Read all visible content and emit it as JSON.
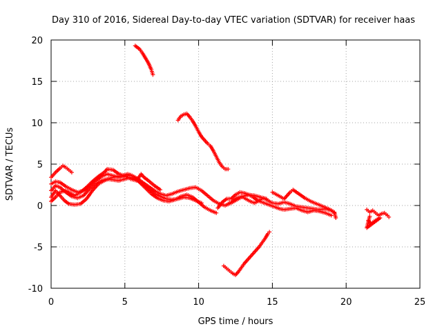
{
  "chart_data": {
    "type": "scatter",
    "title": "Day 310 of 2016, Sidereal Day-to-day VTEC variation (SDTVAR) for receiver haas",
    "xlabel": "GPS time / hours",
    "ylabel": "SDTVAR / TECUs",
    "xlim": [
      0,
      25
    ],
    "ylim": [
      -10,
      20
    ],
    "x_ticks": [
      0,
      5,
      10,
      15,
      20,
      25
    ],
    "y_ticks": [
      -10,
      -5,
      0,
      5,
      10,
      15,
      20
    ],
    "x_tick_labels": [
      "0",
      "5",
      "10",
      "15",
      "20",
      "25"
    ],
    "y_tick_labels": [
      "-10",
      "-5",
      "0",
      "5",
      "10",
      "15",
      "20"
    ],
    "grid": true,
    "marker": "+",
    "color": "#ff0000",
    "series": [
      {
        "name": "track-1",
        "points": [
          [
            0.0,
            3.4
          ],
          [
            0.3,
            4.0
          ],
          [
            0.6,
            4.5
          ],
          [
            0.8,
            4.8
          ],
          [
            1.0,
            4.6
          ],
          [
            1.2,
            4.3
          ],
          [
            1.4,
            4.0
          ]
        ]
      },
      {
        "name": "track-2",
        "points": [
          [
            0.0,
            2.6
          ],
          [
            0.3,
            2.9
          ],
          [
            0.6,
            2.8
          ],
          [
            1.0,
            2.3
          ],
          [
            1.4,
            1.9
          ],
          [
            1.8,
            1.6
          ],
          [
            2.2,
            1.8
          ],
          [
            2.6,
            2.4
          ],
          [
            3.0,
            3.0
          ],
          [
            3.4,
            3.5
          ],
          [
            3.8,
            3.8
          ],
          [
            4.2,
            3.6
          ],
          [
            4.6,
            3.4
          ],
          [
            5.0,
            3.5
          ],
          [
            5.4,
            3.7
          ],
          [
            5.8,
            3.3
          ],
          [
            6.2,
            2.8
          ],
          [
            6.6,
            2.3
          ],
          [
            7.0,
            1.8
          ],
          [
            7.4,
            1.4
          ],
          [
            7.8,
            1.2
          ],
          [
            8.2,
            1.4
          ],
          [
            8.6,
            1.7
          ],
          [
            9.0,
            1.9
          ],
          [
            9.4,
            2.1
          ],
          [
            9.8,
            2.2
          ],
          [
            10.2,
            1.8
          ],
          [
            10.6,
            1.2
          ],
          [
            11.0,
            0.6
          ],
          [
            11.4,
            0.2
          ],
          [
            11.8,
            0.0
          ],
          [
            12.2,
            0.3
          ],
          [
            12.6,
            0.7
          ],
          [
            13.0,
            1.1
          ],
          [
            13.4,
            1.3
          ],
          [
            13.8,
            1.2
          ],
          [
            14.2,
            1.0
          ],
          [
            14.6,
            0.8
          ]
        ]
      },
      {
        "name": "track-3",
        "points": [
          [
            0.0,
            1.8
          ],
          [
            0.3,
            2.4
          ],
          [
            0.6,
            2.2
          ],
          [
            1.0,
            1.6
          ],
          [
            1.4,
            1.1
          ],
          [
            1.8,
            0.9
          ],
          [
            2.2,
            1.2
          ],
          [
            2.6,
            2.0
          ],
          [
            3.0,
            2.6
          ],
          [
            3.4,
            3.0
          ],
          [
            3.8,
            3.2
          ],
          [
            4.2,
            3.1
          ],
          [
            4.6,
            3.0
          ],
          [
            5.0,
            3.2
          ],
          [
            5.4,
            3.4
          ],
          [
            5.8,
            3.1
          ],
          [
            6.2,
            2.6
          ],
          [
            6.6,
            2.0
          ],
          [
            7.0,
            1.5
          ],
          [
            7.4,
            1.1
          ],
          [
            7.8,
            0.8
          ],
          [
            8.2,
            0.7
          ],
          [
            8.6,
            0.8
          ],
          [
            9.0,
            1.0
          ],
          [
            9.4,
            0.9
          ],
          [
            9.8,
            0.6
          ],
          [
            10.2,
            0.3
          ]
        ]
      },
      {
        "name": "track-4",
        "points": [
          [
            0.0,
            1.0
          ],
          [
            0.3,
            1.8
          ],
          [
            0.6,
            1.2
          ],
          [
            0.9,
            0.6
          ],
          [
            1.2,
            0.2
          ],
          [
            1.6,
            0.1
          ],
          [
            2.0,
            0.2
          ],
          [
            2.4,
            0.8
          ],
          [
            2.8,
            1.8
          ],
          [
            3.2,
            2.6
          ],
          [
            3.6,
            3.0
          ],
          [
            4.0,
            3.3
          ],
          [
            4.4,
            3.5
          ],
          [
            4.8,
            3.6
          ],
          [
            5.2,
            3.8
          ],
          [
            5.6,
            3.5
          ],
          [
            6.0,
            2.8
          ],
          [
            6.4,
            2.1
          ],
          [
            6.8,
            1.4
          ],
          [
            7.2,
            0.9
          ],
          [
            7.6,
            0.6
          ],
          [
            8.0,
            0.5
          ],
          [
            8.4,
            0.7
          ],
          [
            8.8,
            1.1
          ],
          [
            9.2,
            1.3
          ],
          [
            9.6,
            1.0
          ],
          [
            10.0,
            0.4
          ],
          [
            10.4,
            -0.2
          ],
          [
            10.8,
            -0.6
          ],
          [
            11.2,
            -0.9
          ]
        ]
      },
      {
        "name": "track-5",
        "points": [
          [
            0.0,
            0.5
          ],
          [
            0.3,
            1.0
          ],
          [
            0.6,
            1.6
          ],
          [
            1.0,
            1.8
          ],
          [
            1.3,
            1.5
          ],
          [
            1.6,
            1.2
          ],
          [
            2.0,
            1.6
          ],
          [
            2.4,
            2.2
          ],
          [
            2.8,
            2.9
          ],
          [
            3.2,
            3.5
          ],
          [
            3.6,
            4.0
          ],
          [
            3.8,
            4.4
          ],
          [
            4.2,
            4.3
          ],
          [
            4.6,
            3.8
          ],
          [
            5.0,
            3.6
          ],
          [
            5.4,
            3.2
          ],
          [
            5.8,
            3.0
          ],
          [
            6.1,
            3.8
          ],
          [
            6.3,
            3.4
          ],
          [
            6.6,
            3.0
          ],
          [
            7.0,
            2.4
          ],
          [
            7.4,
            1.9
          ]
        ]
      },
      {
        "name": "track-6",
        "points": [
          [
            5.7,
            19.3
          ],
          [
            6.0,
            18.9
          ],
          [
            6.2,
            18.4
          ],
          [
            6.4,
            17.8
          ],
          [
            6.6,
            17.2
          ],
          [
            6.8,
            16.4
          ],
          [
            6.9,
            15.8
          ]
        ]
      },
      {
        "name": "track-7",
        "points": [
          [
            8.6,
            10.3
          ],
          [
            8.8,
            10.8
          ],
          [
            9.0,
            11.0
          ],
          [
            9.2,
            11.1
          ],
          [
            9.4,
            10.7
          ],
          [
            9.6,
            10.2
          ],
          [
            9.8,
            9.6
          ],
          [
            10.0,
            8.9
          ],
          [
            10.2,
            8.3
          ],
          [
            10.4,
            7.9
          ],
          [
            10.6,
            7.5
          ],
          [
            10.8,
            7.2
          ],
          [
            11.0,
            6.6
          ],
          [
            11.2,
            5.9
          ],
          [
            11.4,
            5.2
          ],
          [
            11.6,
            4.7
          ],
          [
            11.8,
            4.4
          ],
          [
            12.0,
            4.4
          ]
        ]
      },
      {
        "name": "track-8",
        "points": [
          [
            11.7,
            -7.3
          ],
          [
            11.9,
            -7.6
          ],
          [
            12.1,
            -7.9
          ],
          [
            12.3,
            -8.2
          ],
          [
            12.5,
            -8.4
          ],
          [
            12.7,
            -8.0
          ],
          [
            12.9,
            -7.5
          ],
          [
            13.1,
            -7.0
          ],
          [
            13.3,
            -6.6
          ],
          [
            13.5,
            -6.2
          ],
          [
            13.7,
            -5.8
          ],
          [
            13.9,
            -5.4
          ],
          [
            14.1,
            -5.0
          ],
          [
            14.3,
            -4.5
          ],
          [
            14.5,
            -4.0
          ],
          [
            14.7,
            -3.4
          ],
          [
            14.8,
            -3.2
          ]
        ]
      },
      {
        "name": "track-9",
        "points": [
          [
            11.3,
            -0.3
          ],
          [
            11.6,
            0.4
          ],
          [
            11.9,
            0.8
          ],
          [
            12.2,
            0.8
          ],
          [
            12.5,
            1.3
          ],
          [
            12.8,
            1.6
          ],
          [
            13.1,
            1.5
          ],
          [
            13.4,
            1.3
          ],
          [
            13.7,
            1.0
          ],
          [
            14.0,
            0.6
          ],
          [
            14.3,
            0.4
          ],
          [
            14.6,
            0.2
          ],
          [
            14.9,
            0.0
          ],
          [
            15.2,
            -0.2
          ],
          [
            15.5,
            -0.4
          ],
          [
            15.8,
            -0.5
          ],
          [
            16.2,
            -0.4
          ],
          [
            16.6,
            -0.3
          ],
          [
            17.0,
            -0.6
          ],
          [
            17.4,
            -0.8
          ],
          [
            17.8,
            -0.6
          ],
          [
            18.2,
            -0.7
          ],
          [
            18.6,
            -0.9
          ],
          [
            19.0,
            -1.2
          ]
        ]
      },
      {
        "name": "track-10",
        "points": [
          [
            12.0,
            0.2
          ],
          [
            12.3,
            0.5
          ],
          [
            12.6,
            0.9
          ],
          [
            12.9,
            1.1
          ],
          [
            13.2,
            0.8
          ],
          [
            13.5,
            0.5
          ],
          [
            13.8,
            0.3
          ],
          [
            14.1,
            0.6
          ],
          [
            14.4,
            0.9
          ],
          [
            14.7,
            0.6
          ],
          [
            15.0,
            0.3
          ],
          [
            15.4,
            0.2
          ],
          [
            15.8,
            0.4
          ],
          [
            16.2,
            0.2
          ],
          [
            16.6,
            -0.1
          ],
          [
            17.0,
            -0.2
          ],
          [
            17.4,
            -0.3
          ],
          [
            17.8,
            -0.4
          ],
          [
            18.2,
            -0.5
          ],
          [
            18.6,
            -0.4
          ],
          [
            19.0,
            -0.6
          ],
          [
            19.2,
            -0.9
          ]
        ]
      },
      {
        "name": "track-11",
        "points": [
          [
            15.0,
            1.6
          ],
          [
            15.4,
            1.2
          ],
          [
            15.8,
            0.8
          ],
          [
            16.2,
            1.6
          ],
          [
            16.4,
            1.9
          ],
          [
            16.8,
            1.4
          ],
          [
            17.2,
            0.9
          ],
          [
            17.6,
            0.5
          ],
          [
            18.0,
            0.2
          ],
          [
            18.4,
            -0.1
          ],
          [
            18.8,
            -0.4
          ],
          [
            19.2,
            -0.8
          ],
          [
            19.3,
            -1.5
          ]
        ]
      },
      {
        "name": "track-12",
        "points": [
          [
            21.4,
            -0.5
          ],
          [
            21.6,
            -0.8
          ],
          [
            21.8,
            -0.6
          ],
          [
            22.0,
            -0.9
          ],
          [
            22.2,
            -1.2
          ],
          [
            22.4,
            -1.0
          ],
          [
            22.6,
            -0.9
          ],
          [
            22.8,
            -1.2
          ],
          [
            22.9,
            -1.4
          ],
          [
            21.5,
            -1.8
          ],
          [
            21.7,
            -2.2
          ],
          [
            21.9,
            -1.9
          ],
          [
            22.1,
            -1.7
          ],
          [
            22.3,
            -1.5
          ],
          [
            21.4,
            -2.7
          ],
          [
            21.6,
            -1.3
          ]
        ]
      }
    ]
  }
}
